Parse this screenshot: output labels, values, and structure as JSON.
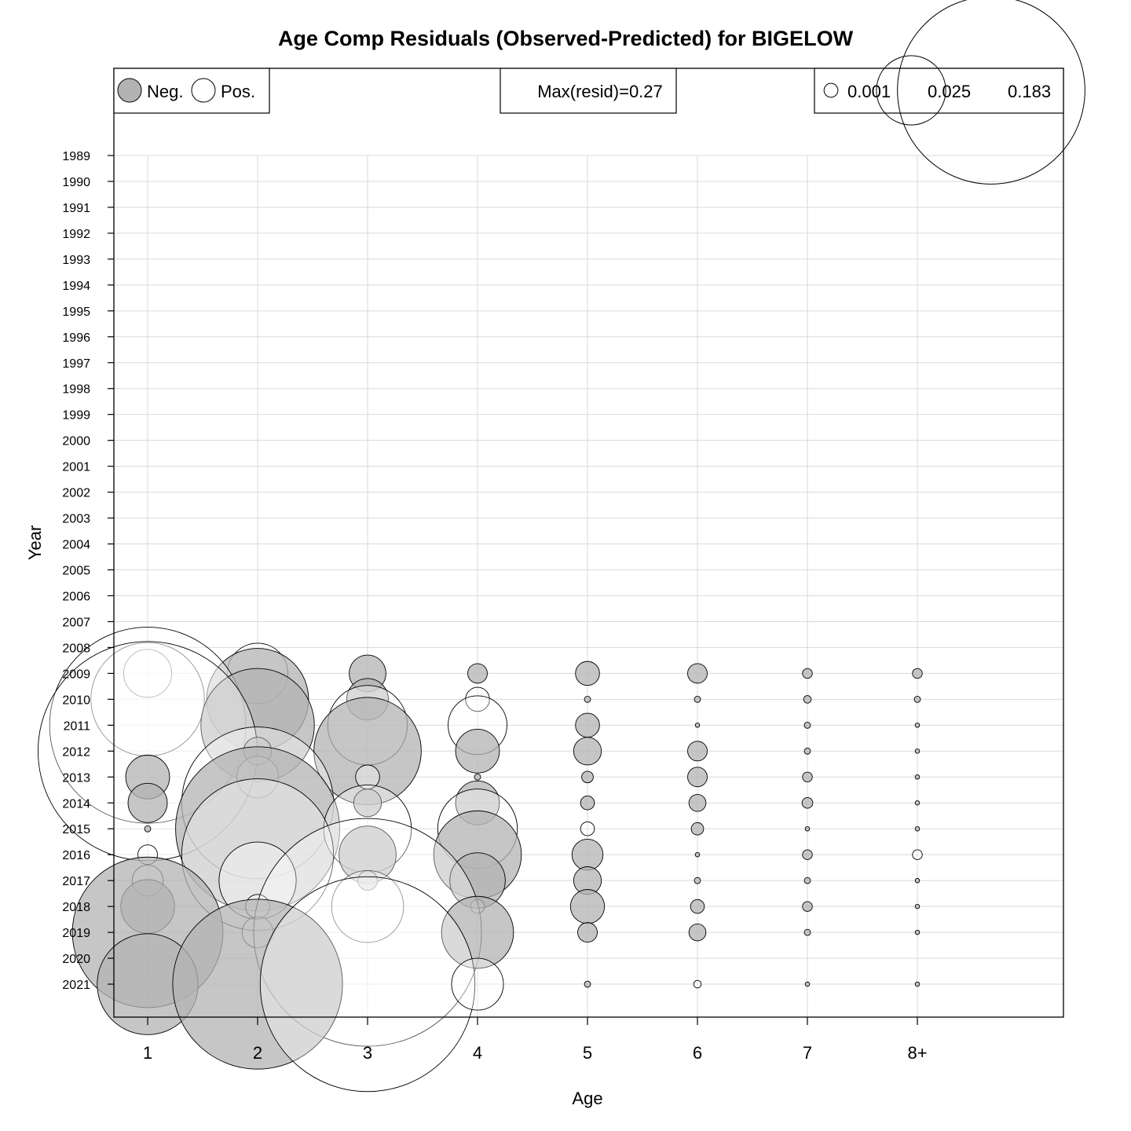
{
  "chart_data": {
    "type": "bubble",
    "title": "Age Comp Residuals (Observed-Predicted) for BIGELOW",
    "xlabel": "Age",
    "ylabel": "Year",
    "ages": [
      "1",
      "2",
      "3",
      "4",
      "5",
      "6",
      "7",
      "8+"
    ],
    "years": [
      1989,
      1990,
      1991,
      1992,
      1993,
      1994,
      1995,
      1996,
      1997,
      1998,
      1999,
      2000,
      2001,
      2002,
      2003,
      2004,
      2005,
      2006,
      2007,
      2008,
      2009,
      2010,
      2011,
      2012,
      2013,
      2014,
      2015,
      2016,
      2017,
      2018,
      2019,
      2020,
      2021
    ],
    "grid": true,
    "colors": {
      "negative": "#b3b3b3",
      "positive": "#ffffff",
      "stroke": "#000000",
      "grid": "#d9d9d9"
    },
    "legend": {
      "sign": {
        "neg_label": "Neg.",
        "pos_label": "Pos."
      },
      "max_label": "Max(resid)=0.27",
      "max_resid": 0.27,
      "sizes": [
        {
          "label": "0.001",
          "value": 0.001
        },
        {
          "label": "0.025",
          "value": 0.025
        },
        {
          "label": "0.183",
          "value": 0.183
        }
      ]
    },
    "residuals": [
      {
        "year": 2009,
        "values": [
          0.012,
          0.019,
          -0.007,
          -0.002,
          -0.003,
          -0.002,
          -0.0005,
          -0.0005
        ]
      },
      {
        "year": 2010,
        "values": [
          0.067,
          -0.054,
          -0.009,
          0.003,
          -0.0002,
          -0.0002,
          -0.0003,
          -0.0002
        ]
      },
      {
        "year": 2011,
        "values": [
          0.2,
          -0.067,
          0.033,
          0.018,
          -0.003,
          -0.0001,
          -0.0002,
          -0.0001
        ]
      },
      {
        "year": 2012,
        "values": [
          0.25,
          -0.004,
          -0.06,
          -0.01,
          -0.004,
          -0.002,
          -0.0002,
          -0.0001
        ]
      },
      {
        "year": 2013,
        "values": [
          -0.01,
          0.009,
          0.003,
          -0.0002,
          -0.0007,
          -0.002,
          -0.0005,
          -0.0001
        ]
      },
      {
        "year": 2014,
        "values": [
          -0.008,
          0.12,
          -0.004,
          -0.01,
          -0.001,
          -0.0015,
          -0.0006,
          -0.0001
        ]
      },
      {
        "year": 2015,
        "values": [
          -0.0002,
          -0.14,
          0.04,
          0.033,
          0.001,
          -0.0008,
          -0.0001,
          -0.0001
        ]
      },
      {
        "year": 2016,
        "values": [
          0.002,
          0.12,
          -0.017,
          -0.04,
          -0.005,
          -0.0001,
          -0.0005,
          0.0005
        ]
      },
      {
        "year": 2017,
        "values": [
          0.005,
          0.031,
          -0.002,
          -0.016,
          -0.004,
          -0.0002,
          -0.0002,
          -0.0001
        ]
      },
      {
        "year": 2018,
        "values": [
          -0.015,
          0.003,
          0.027,
          0.001,
          -0.006,
          -0.001,
          -0.0005,
          -0.0001
        ]
      },
      {
        "year": 2019,
        "values": [
          -0.118,
          0.005,
          0.27,
          -0.027,
          -0.002,
          -0.0015,
          -0.0002,
          -0.0001
        ]
      },
      {
        "year": 2021,
        "values": [
          -0.053,
          -0.15,
          0.24,
          0.014,
          -0.0002,
          0.0003,
          -0.0001,
          -0.0001
        ]
      }
    ]
  }
}
